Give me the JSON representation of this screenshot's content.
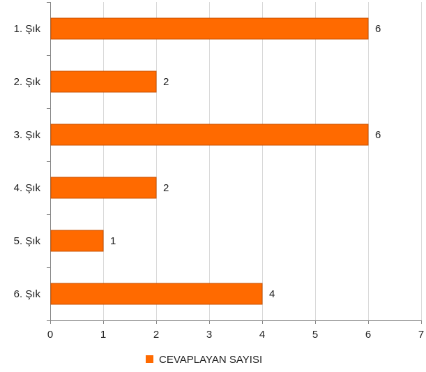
{
  "chart_data": {
    "type": "bar",
    "orientation": "horizontal",
    "categories": [
      "1. Şık",
      "2. Şık",
      "3. Şık",
      "4. Şık",
      "5. Şık",
      "6. Şık"
    ],
    "series": [
      {
        "name": "CEVAPLAYAN SAYISI",
        "values": [
          6,
          2,
          6,
          2,
          1,
          4
        ]
      }
    ],
    "xlim": [
      0,
      7
    ],
    "xticks": [
      0,
      1,
      2,
      3,
      4,
      5,
      6,
      7
    ],
    "grid": true,
    "legend": "bottom-center",
    "data_labels": true,
    "colors": {
      "bar": "#ff6a00",
      "bar_edge": "#c85000",
      "grid": "#d9d9d9",
      "axis": "#888888"
    }
  }
}
